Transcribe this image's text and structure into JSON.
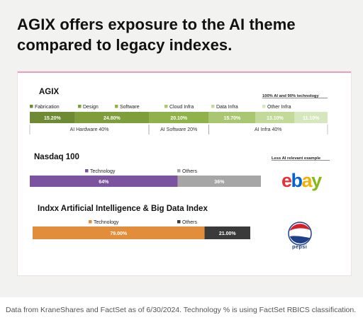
{
  "headline": "AGIX offers exposure to the AI theme compared to legacy indexes.",
  "footnote": "Data from KraneShares and FactSet as of 6/30/2024. Technology % is using FactSet RBICS classification.",
  "colors": {
    "fabrication": "#6f8a34",
    "design": "#7e9e3b",
    "software": "#8fb34a",
    "cloud_infra": "#a9c772",
    "data_infra": "#c2d99a",
    "other_infra": "#d7e7bd",
    "nasdaq_technology": "#7b539e",
    "nasdaq_others": "#a6a6a6",
    "indxx_technology": "#e18d3a",
    "indxx_others": "#3a3a3a",
    "ebay_e": "#e53238",
    "ebay_b": "#0064d2",
    "ebay_a": "#f5af02",
    "ebay_y": "#86b817",
    "pepsi_red": "#d71f2b",
    "pepsi_blue": "#1e3f8a"
  },
  "logos": {
    "ebay": [
      "e",
      "b",
      "a",
      "y"
    ],
    "pepsi": "pepsi"
  },
  "chart_data": [
    {
      "type": "bar",
      "title": "AGIX",
      "note": "100% AI and 90% technology",
      "series": [
        {
          "name": "Fabrication",
          "value": 15.2,
          "label": "15.20%",
          "color_key": "fabrication"
        },
        {
          "name": "Design",
          "value": 24.8,
          "label": "24.80%",
          "color_key": "design"
        },
        {
          "name": "Software",
          "value": 20.1,
          "label": "20.10%",
          "color_key": "software"
        },
        {
          "name": "Cloud Infra",
          "value": 15.7,
          "label": "15.70%",
          "color_key": "cloud_infra"
        },
        {
          "name": "Data Infra",
          "value": 13.1,
          "label": "13.10%",
          "color_key": "data_infra"
        },
        {
          "name": "Other Infra",
          "value": 11.1,
          "label": "11.10%",
          "color_key": "other_infra"
        }
      ],
      "groups": [
        {
          "label": "AI Hardware 40%",
          "from": 0,
          "to": 1
        },
        {
          "label": "AI Software 20%",
          "from": 2,
          "to": 2
        },
        {
          "label": "AI Infra 40%",
          "from": 3,
          "to": 5
        }
      ]
    },
    {
      "type": "bar",
      "title": "Nasdaq 100",
      "note": "Less AI relevant example",
      "series": [
        {
          "name": "Technology",
          "value": 64,
          "label": "64%",
          "color_key": "nasdaq_technology"
        },
        {
          "name": "Others",
          "value": 36,
          "label": "36%",
          "color_key": "nasdaq_others"
        }
      ]
    },
    {
      "type": "bar",
      "title": "Indxx Artificial Intelligence & Big Data Index",
      "series": [
        {
          "name": "Technology",
          "value": 79.0,
          "label": "79.00%",
          "color_key": "indxx_technology"
        },
        {
          "name": "Others",
          "value": 21.0,
          "label": "21.00%",
          "color_key": "indxx_others"
        }
      ]
    }
  ]
}
